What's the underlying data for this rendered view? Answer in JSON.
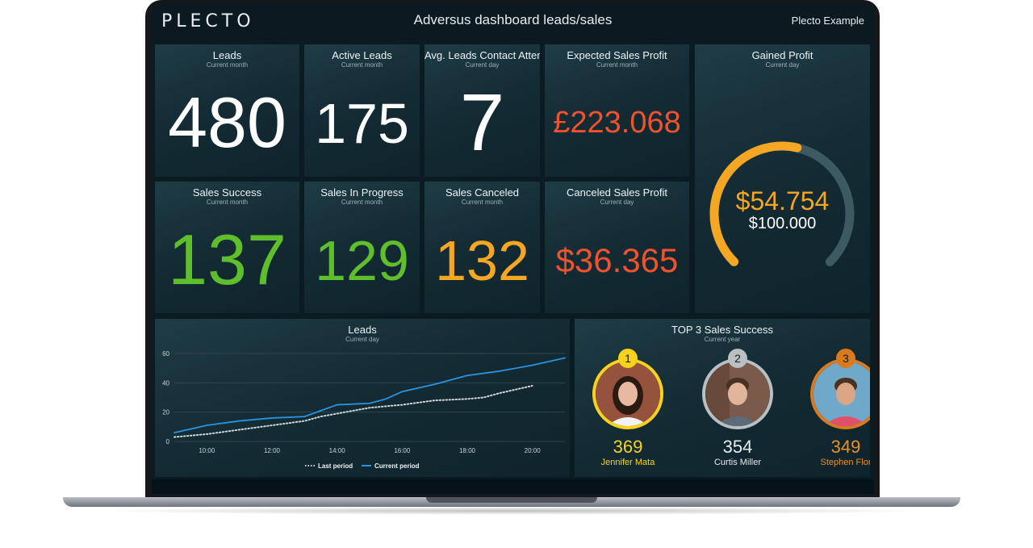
{
  "header": {
    "logo": "PLECTO",
    "title": "Adversus dashboard leads/sales",
    "account": "Plecto Example"
  },
  "tiles": {
    "leads": {
      "title": "Leads",
      "sub": "Current month",
      "value": "480"
    },
    "active_leads": {
      "title": "Active Leads",
      "sub": "Current month",
      "value": "175"
    },
    "avg_contact": {
      "title": "Avg. Leads Contact Attem",
      "sub": "Current day",
      "value": "7"
    },
    "expected_profit": {
      "title": "Expected Sales Profit",
      "sub": "Current month",
      "value": "£223.068"
    },
    "gained_profit": {
      "title": "Gained Profit",
      "sub": "Current day",
      "value": "$54.754",
      "target": "$100.000",
      "fraction": 0.548
    },
    "sales_success": {
      "title": "Sales Success",
      "sub": "Current month",
      "value": "137"
    },
    "sales_in_progress": {
      "title": "Sales In Progress",
      "sub": "Current month",
      "value": "129"
    },
    "sales_canceled": {
      "title": "Sales Canceled",
      "sub": "Current month",
      "value": "132"
    },
    "canceled_profit": {
      "title": "Canceled Sales Profit",
      "sub": "Current day",
      "value": "$36.365"
    }
  },
  "colors": {
    "white": "#ffffff",
    "green": "#5fbe2c",
    "orange": "#f5a623",
    "red": "#f0522d",
    "gauge_track": "#3d5a63",
    "current_line": "#2a93e0",
    "last_line": "#d0d6d8"
  },
  "leads_chart": {
    "title": "Leads",
    "sub": "Current day"
  },
  "chart_data": {
    "type": "line",
    "title": "Leads",
    "ylim": [
      0,
      60
    ],
    "yticks": [
      "0",
      "20",
      "40",
      "60"
    ],
    "xticks": [
      "10:00",
      "12:00",
      "14:00",
      "16:00",
      "18:00",
      "20:00"
    ],
    "xlim": [
      9,
      21
    ],
    "legend": "bottom",
    "series": [
      {
        "name": "Last period",
        "style": "dotted",
        "x": [
          9,
          10,
          11,
          12,
          13,
          13.5,
          14,
          15,
          16,
          17,
          18,
          18.5,
          19,
          20
        ],
        "y": [
          3,
          5,
          8,
          11,
          14,
          17,
          19,
          23,
          25,
          28,
          29,
          30,
          33,
          38
        ]
      },
      {
        "name": "Current period",
        "style": "solid",
        "x": [
          9,
          10,
          11,
          12,
          13,
          13.5,
          14,
          15,
          15.5,
          16,
          17,
          18,
          19,
          20,
          21
        ],
        "y": [
          6,
          11,
          14,
          16,
          17,
          21,
          25,
          26,
          29,
          34,
          39,
          45,
          48,
          52,
          57
        ]
      }
    ]
  },
  "top3": {
    "title": "TOP 3 Sales Success",
    "sub": "Current year",
    "people": [
      {
        "rank": "1",
        "score": "369",
        "name": "Jennifer Mata"
      },
      {
        "rank": "2",
        "score": "354",
        "name": "Curtis Miller"
      },
      {
        "rank": "3",
        "score": "349",
        "name": "Stephen Flor"
      }
    ]
  }
}
